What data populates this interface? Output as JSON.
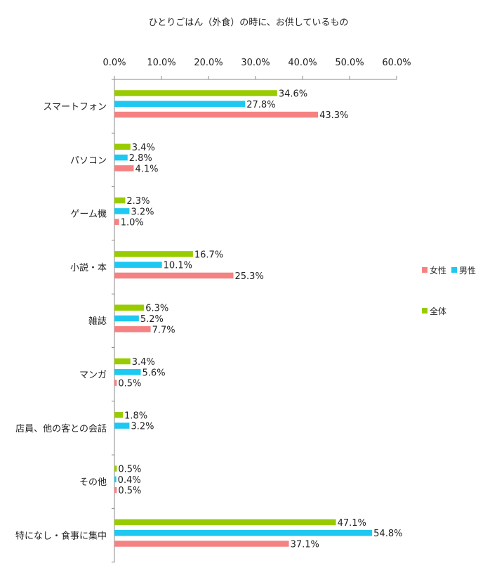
{
  "chart_data": {
    "type": "bar",
    "orientation": "horizontal",
    "title": "ひとりごはん（外食）の時に、お供しているもの",
    "categories": [
      "スマートフォン",
      "パソコン",
      "ゲーム機",
      "小説・本",
      "雑誌",
      "マンガ",
      "店員、他の客との会話",
      "その他",
      "特になし・食事に集中"
    ],
    "series": [
      {
        "name": "全体",
        "color": "#99cc00",
        "values": [
          34.6,
          3.4,
          2.3,
          16.7,
          6.3,
          3.4,
          1.8,
          0.5,
          47.1
        ],
        "labels": [
          "34.6%",
          "3.4%",
          "2.3%",
          "16.7%",
          "6.3%",
          "3.4%",
          "1.8%",
          "0.5%",
          "47.1%"
        ]
      },
      {
        "name": "男性",
        "color": "#1ec8f0",
        "values": [
          27.8,
          2.8,
          3.2,
          10.1,
          5.2,
          5.6,
          3.2,
          0.4,
          54.8
        ],
        "labels": [
          "27.8%",
          "2.8%",
          "3.2%",
          "10.1%",
          "5.2%",
          "5.6%",
          "3.2%",
          "0.4%",
          "54.8%"
        ]
      },
      {
        "name": "女性",
        "color": "#f58282",
        "values": [
          43.3,
          4.1,
          1.0,
          25.3,
          7.7,
          0.5,
          null,
          0.5,
          37.1
        ],
        "labels": [
          "43.3%",
          "4.1%",
          "1.0%",
          "25.3%",
          "7.7%",
          "0.5%",
          "",
          "0.5%",
          "37.1%"
        ]
      }
    ],
    "xlim": [
      0,
      60
    ],
    "ticks": [
      0,
      10,
      20,
      30,
      40,
      50,
      60
    ],
    "tick_labels": [
      "0.0%",
      "10.0%",
      "20.0%",
      "30.0%",
      "40.0%",
      "50.0%",
      "60.0%"
    ],
    "axis_position": "top",
    "grid": false,
    "legend_position": "right",
    "legend": [
      "女性",
      "男性",
      "全体"
    ]
  }
}
